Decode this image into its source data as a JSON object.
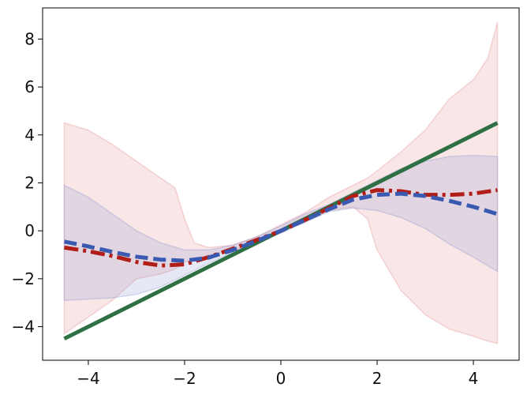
{
  "chart_data": {
    "type": "line",
    "title": "",
    "xlabel": "",
    "ylabel": "",
    "xlim": [
      -4.95,
      4.95
    ],
    "ylim": [
      -5.4,
      9.3
    ],
    "x_ticks": [
      -4,
      -2,
      0,
      2,
      4
    ],
    "y_ticks": [
      -4,
      -2,
      0,
      2,
      4,
      6,
      8
    ],
    "x_tick_labels": [
      "−4",
      "−2",
      "0",
      "2",
      "4"
    ],
    "y_tick_labels": [
      "−4",
      "−2",
      "0",
      "2",
      "4",
      "6",
      "8"
    ],
    "grid": false,
    "legend": "none",
    "series": [
      {
        "kind": "band",
        "color": "#e8a5a8",
        "opacity": 0.28,
        "x": [
          -4.5,
          -4.0,
          -3.5,
          -3.0,
          -2.5,
          -2.2,
          -2.0,
          -1.8,
          -1.5,
          -1.0,
          -0.5,
          0.0,
          0.5,
          1.0,
          1.5,
          1.8,
          2.0,
          2.5,
          3.0,
          3.5,
          4.0,
          4.3,
          4.5
        ],
        "upper": [
          4.5,
          4.2,
          3.6,
          2.9,
          2.2,
          1.8,
          0.5,
          -0.5,
          -0.7,
          -0.6,
          -0.25,
          0.25,
          0.75,
          1.4,
          1.9,
          2.2,
          2.5,
          3.3,
          4.2,
          5.5,
          6.3,
          7.2,
          8.7
        ],
        "lower": [
          -4.3,
          -3.6,
          -2.9,
          -2.0,
          -1.8,
          -1.6,
          -1.3,
          -1.2,
          -1.0,
          -0.85,
          -0.4,
          0.0,
          0.4,
          0.85,
          1.0,
          0.5,
          -0.8,
          -2.5,
          -3.5,
          -4.1,
          -4.4,
          -4.6,
          -4.7
        ]
      },
      {
        "kind": "band",
        "color": "#8f9ad0",
        "opacity": 0.22,
        "x": [
          -4.5,
          -4.0,
          -3.5,
          -3.0,
          -2.5,
          -2.0,
          -1.5,
          -1.0,
          -0.5,
          0.0,
          0.5,
          1.0,
          1.5,
          2.0,
          2.5,
          3.0,
          3.5,
          4.0,
          4.5
        ],
        "upper": [
          1.9,
          1.4,
          0.7,
          0.0,
          -0.5,
          -0.8,
          -0.8,
          -0.6,
          -0.25,
          0.2,
          0.7,
          1.1,
          1.6,
          2.1,
          2.6,
          2.9,
          3.1,
          3.15,
          3.1
        ],
        "lower": [
          -2.9,
          -2.85,
          -2.8,
          -2.65,
          -2.35,
          -1.85,
          -1.35,
          -0.9,
          -0.4,
          -0.1,
          0.35,
          0.8,
          0.95,
          0.85,
          0.55,
          0.1,
          -0.55,
          -1.1,
          -1.7
        ]
      },
      {
        "kind": "line",
        "color": "#2e7043",
        "dash": "solid",
        "x": [
          -4.5,
          4.5
        ],
        "y": [
          -4.5,
          4.5
        ]
      },
      {
        "kind": "line",
        "color": "#b11e17",
        "dash": "dashdot",
        "x": [
          -4.5,
          -4.0,
          -3.5,
          -3.0,
          -2.5,
          -2.0,
          -1.5,
          -1.0,
          -0.5,
          0.0,
          0.5,
          1.0,
          1.5,
          2.0,
          2.5,
          3.0,
          3.5,
          4.0,
          4.5
        ],
        "y": [
          -0.7,
          -0.85,
          -1.05,
          -1.3,
          -1.45,
          -1.4,
          -1.1,
          -0.75,
          -0.38,
          0.0,
          0.45,
          0.95,
          1.45,
          1.7,
          1.65,
          1.5,
          1.5,
          1.55,
          1.7
        ]
      },
      {
        "kind": "line",
        "color": "#3a59b0",
        "dash": "dashed",
        "x": [
          -4.5,
          -4.0,
          -3.5,
          -3.0,
          -2.5,
          -2.0,
          -1.5,
          -1.0,
          -0.5,
          0.0,
          0.5,
          1.0,
          1.5,
          2.0,
          2.5,
          3.0,
          3.5,
          4.0,
          4.5
        ],
        "y": [
          -0.45,
          -0.65,
          -0.88,
          -1.08,
          -1.2,
          -1.25,
          -1.12,
          -0.8,
          -0.42,
          0.0,
          0.45,
          0.9,
          1.3,
          1.5,
          1.55,
          1.45,
          1.25,
          1.0,
          0.7
        ]
      }
    ]
  }
}
